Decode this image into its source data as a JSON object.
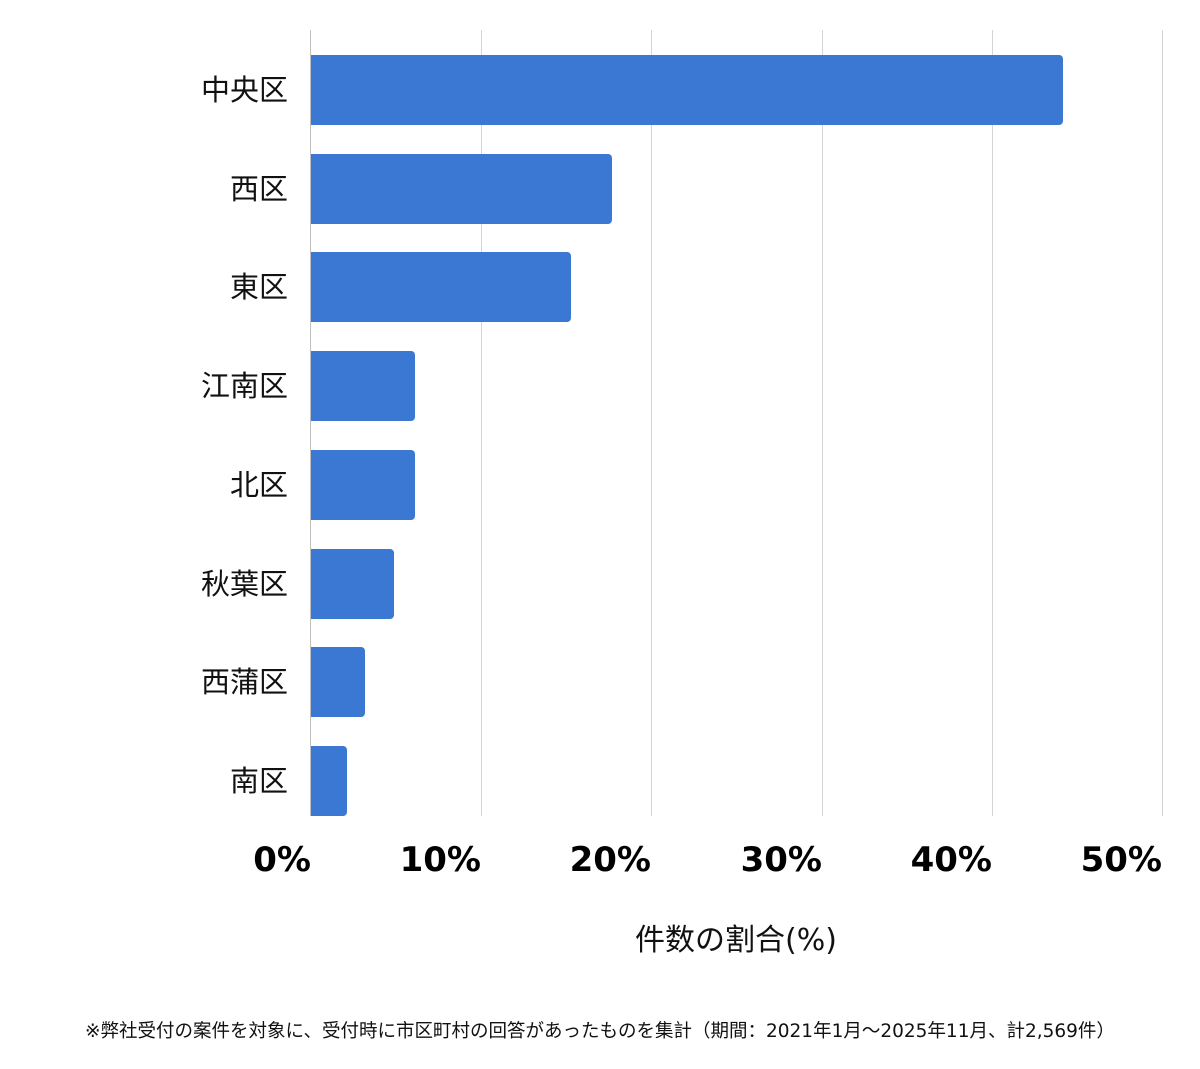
{
  "chart_data": {
    "type": "bar",
    "orientation": "horizontal",
    "title": "",
    "xlabel": "件数の割合(%)",
    "ylabel": "",
    "xlim": [
      0,
      50
    ],
    "grid": true,
    "legend": null,
    "categories": [
      "中央区",
      "西区",
      "東区",
      "江南区",
      "北区",
      "秋葉区",
      "西蒲区",
      "南区"
    ],
    "values": [
      44.2,
      17.7,
      15.3,
      6.1,
      6.1,
      4.9,
      3.2,
      2.1
    ],
    "x_ticks": [
      "0%",
      "10%",
      "20%",
      "30%",
      "40%",
      "50%"
    ],
    "bar_color": "#3b78d4"
  },
  "footnote": "※弊社受付の案件を対象に、受付時に市区町村の回答があったものを集計（期間：2021年1月～2025年11月、計2,569件）"
}
